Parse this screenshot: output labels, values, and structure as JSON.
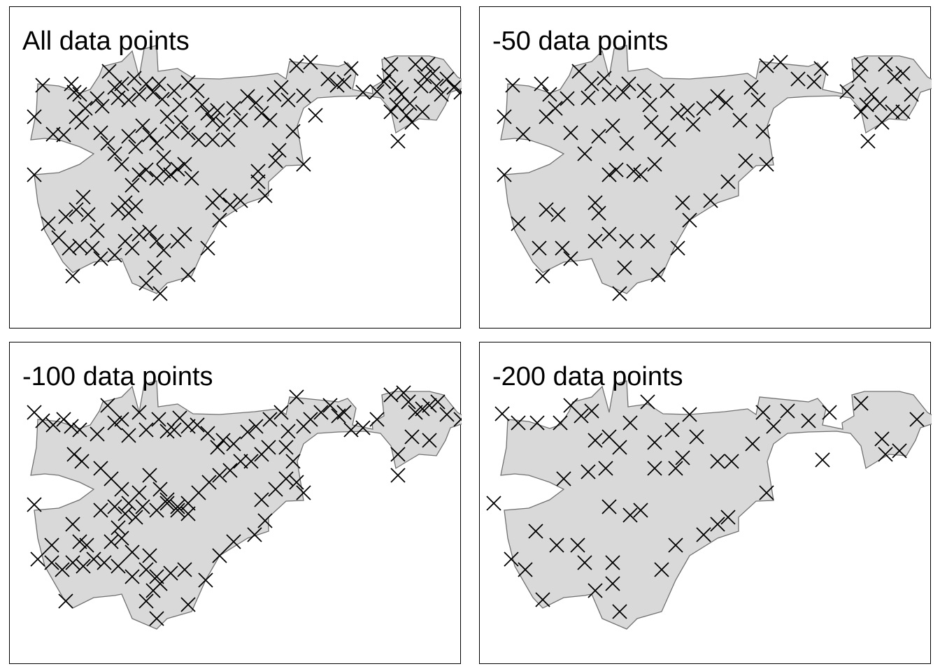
{
  "colors": {
    "region_fill": "#d9d9d9",
    "region_stroke": "#707070",
    "marker": "#000000",
    "background": "#ffffff"
  },
  "marker_icon": "x-cross",
  "panels": [
    {
      "title": "All data points",
      "subset": "all"
    },
    {
      "title": "-50 data points",
      "subset": "minus50"
    },
    {
      "title": "-100 data points",
      "subset": "minus100"
    },
    {
      "title": "-200 data points",
      "subset": "minus200"
    }
  ]
}
